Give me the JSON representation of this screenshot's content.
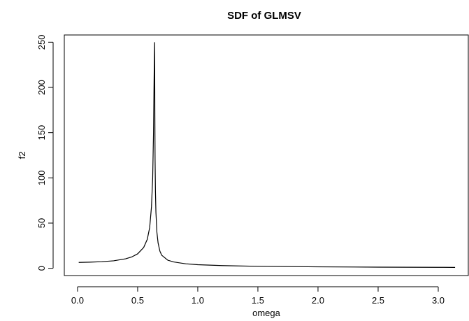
{
  "chart_data": {
    "type": "line",
    "title": "SDF of GLMSV",
    "xlabel": "omega",
    "ylabel": "f2",
    "xlim": [
      -0.11,
      3.25
    ],
    "ylim": [
      -8,
      258
    ],
    "xticks": [
      0.0,
      0.5,
      1.0,
      1.5,
      2.0,
      2.5,
      3.0
    ],
    "xtick_labels": [
      "0.0",
      "0.5",
      "1.0",
      "1.5",
      "2.0",
      "2.5",
      "3.0"
    ],
    "yticks": [
      0,
      50,
      100,
      150,
      200,
      250
    ],
    "ytick_labels": [
      "0",
      "50",
      "100",
      "150",
      "200",
      "250"
    ],
    "grid": false,
    "legend": "none",
    "series": [
      {
        "color": "#000000",
        "x": [
          0.01,
          0.1,
          0.2,
          0.3,
          0.4,
          0.45,
          0.5,
          0.55,
          0.58,
          0.6,
          0.615,
          0.625,
          0.632,
          0.636,
          0.639,
          0.641,
          0.642,
          0.643,
          0.645,
          0.648,
          0.652,
          0.66,
          0.67,
          0.685,
          0.7,
          0.75,
          0.8,
          0.9,
          1.0,
          1.2,
          1.5,
          2.0,
          2.5,
          3.0,
          3.14
        ],
        "y": [
          6.5,
          6.8,
          7.3,
          8.3,
          10.5,
          12.5,
          16,
          23,
          32,
          45,
          68,
          100,
          150,
          200,
          235,
          250,
          220,
          175,
          120,
          85,
          62,
          40,
          28,
          19,
          14.5,
          9,
          7,
          5,
          4,
          3,
          2.2,
          1.6,
          1.3,
          1.1,
          1.0
        ]
      }
    ]
  }
}
